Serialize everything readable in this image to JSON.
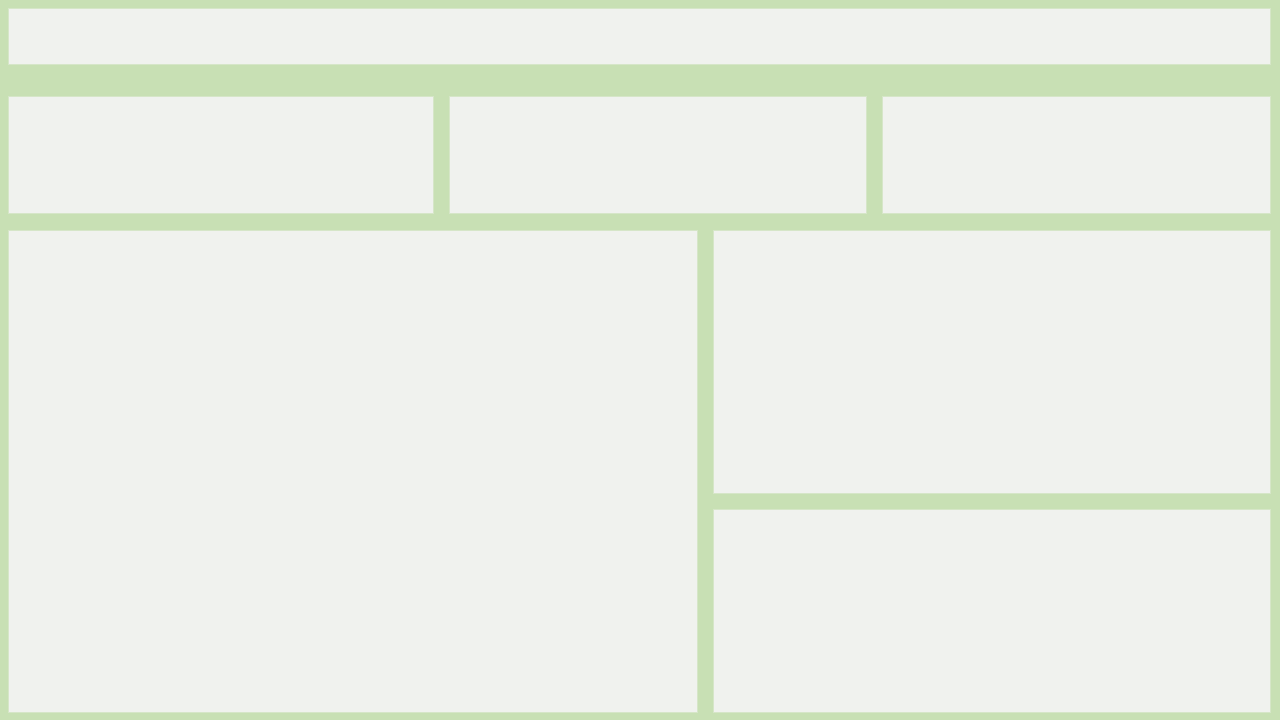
{
  "theme": {
    "background_color": "#c8e0b4",
    "panel_color": "#f0f2ee"
  },
  "header": {},
  "summary_cards": [
    {},
    {},
    {}
  ],
  "main_panel": {},
  "side_panels": [
    {},
    {}
  ]
}
